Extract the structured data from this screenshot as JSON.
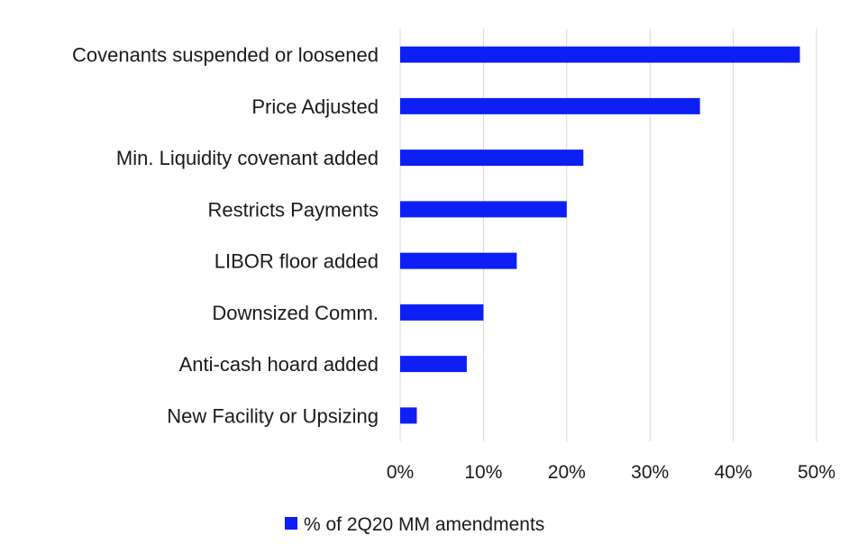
{
  "chart_data": {
    "type": "bar",
    "orientation": "horizontal",
    "categories": [
      "Covenants suspended or loosened",
      "Price Adjusted",
      "Min. Liquidity covenant added",
      "Restricts Payments",
      "LIBOR floor added",
      "Downsized Comm.",
      "Anti-cash hoard added",
      "New Facility or Upsizing"
    ],
    "series": [
      {
        "name": "% of 2Q20 MM amendments",
        "values": [
          0.48,
          0.36,
          0.22,
          0.2,
          0.14,
          0.1,
          0.08,
          0.02
        ],
        "color": "#0d1ff5"
      }
    ],
    "xlim": [
      0,
      0.5
    ],
    "x_ticks": [
      0,
      0.1,
      0.2,
      0.3,
      0.4,
      0.5
    ],
    "x_tick_labels": [
      "0%",
      "10%",
      "20%",
      "30%",
      "40%",
      "50%"
    ],
    "title": "",
    "xlabel": "",
    "ylabel": "",
    "grid": "vertical",
    "legend_position": "bottom",
    "gridline_color": "#d9d9d9"
  }
}
